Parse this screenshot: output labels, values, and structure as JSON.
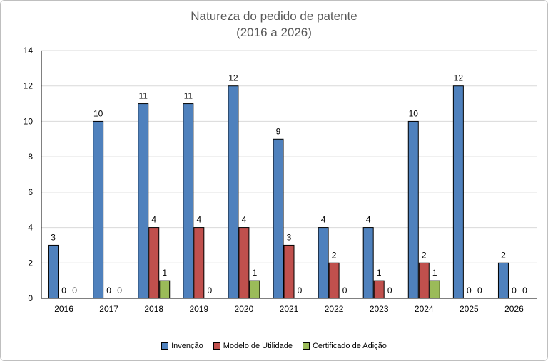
{
  "chart_data": {
    "type": "bar",
    "title_line1": "Natureza do pedido de patente",
    "title_line2": "(2016 a 2026)",
    "categories": [
      "2016",
      "2017",
      "2018",
      "2019",
      "2020",
      "2021",
      "2022",
      "2023",
      "2024",
      "2025",
      "2026"
    ],
    "series": [
      {
        "name": "Invenção",
        "color": "#4f81bd",
        "values": [
          3,
          10,
          11,
          11,
          12,
          9,
          4,
          4,
          10,
          12,
          2
        ]
      },
      {
        "name": "Modelo de Utilidade",
        "color": "#c0504d",
        "values": [
          0,
          0,
          4,
          4,
          4,
          3,
          2,
          1,
          2,
          0,
          0
        ]
      },
      {
        "name": "Certificado de Adição",
        "color": "#9bbb59",
        "values": [
          0,
          0,
          1,
          0,
          1,
          0,
          0,
          0,
          1,
          0,
          0
        ]
      }
    ],
    "ylim": [
      0,
      14
    ],
    "yticks": [
      0,
      2,
      4,
      6,
      8,
      10,
      12,
      14
    ],
    "grid": true,
    "legend_position": "bottom"
  }
}
